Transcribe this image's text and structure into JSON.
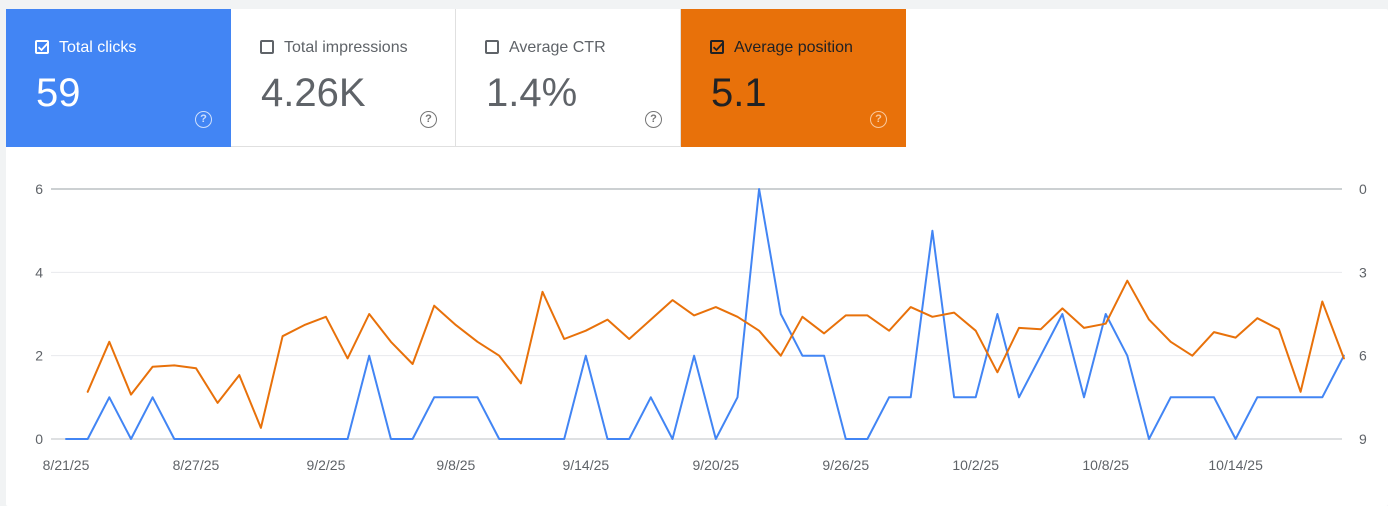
{
  "metrics": [
    {
      "label": "Total clicks",
      "value": "59",
      "checked": true,
      "color": "#4285f4"
    },
    {
      "label": "Total impressions",
      "value": "4.26K",
      "checked": false,
      "color": "#5e35b1"
    },
    {
      "label": "Average CTR",
      "value": "1.4%",
      "checked": false,
      "color": "#00897b"
    },
    {
      "label": "Average position",
      "value": "5.1",
      "checked": true,
      "color": "#e8710a"
    }
  ],
  "help_glyph": "?",
  "chart_data": {
    "type": "line",
    "x_dates": [
      "8/21/25",
      "8/22/25",
      "8/23/25",
      "8/24/25",
      "8/25/25",
      "8/26/25",
      "8/27/25",
      "8/28/25",
      "8/29/25",
      "8/30/25",
      "8/31/25",
      "9/1/25",
      "9/2/25",
      "9/3/25",
      "9/4/25",
      "9/5/25",
      "9/6/25",
      "9/7/25",
      "9/8/25",
      "9/9/25",
      "9/10/25",
      "9/11/25",
      "9/12/25",
      "9/13/25",
      "9/14/25",
      "9/15/25",
      "9/16/25",
      "9/17/25",
      "9/18/25",
      "9/19/25",
      "9/20/25",
      "9/21/25",
      "9/22/25",
      "9/23/25",
      "9/24/25",
      "9/25/25",
      "9/26/25",
      "9/27/25",
      "9/28/25",
      "9/29/25",
      "9/30/25",
      "10/1/25",
      "10/2/25",
      "10/3/25",
      "10/4/25",
      "10/5/25",
      "10/6/25",
      "10/7/25",
      "10/8/25",
      "10/9/25",
      "10/10/25",
      "10/11/25",
      "10/12/25",
      "10/13/25",
      "10/14/25",
      "10/15/25",
      "10/16/25",
      "10/17/25",
      "10/18/25",
      "10/19/25",
      "10/20/25",
      "10/21/25",
      "10/22/25"
    ],
    "x_tick_labels": [
      "8/21/25",
      "8/27/25",
      "9/2/25",
      "9/8/25",
      "9/14/25",
      "9/20/25",
      "9/26/25",
      "10/2/25",
      "10/8/25",
      "10/14/25"
    ],
    "y_left": {
      "ticks": [
        "0",
        "2",
        "4",
        "6"
      ],
      "range": [
        0,
        6
      ]
    },
    "y_right": {
      "ticks": [
        "0",
        "3",
        "6",
        "9"
      ],
      "range": [
        0,
        9
      ],
      "reversed": true
    },
    "grid": true,
    "series": [
      {
        "name": "Total clicks",
        "axis": "left",
        "color": "#4285f4",
        "start_index": 0,
        "values": [
          0,
          0,
          1,
          0,
          1,
          0,
          0,
          0,
          0,
          0,
          0,
          0,
          0,
          0,
          2,
          0,
          0,
          1,
          1,
          1,
          0,
          0,
          0,
          0,
          2,
          0,
          0,
          1,
          0,
          2,
          0,
          1,
          6,
          3,
          2,
          2,
          0,
          0,
          1,
          1,
          5,
          1,
          1,
          3,
          1,
          2,
          3,
          1,
          3,
          2,
          0,
          1,
          1,
          1,
          0,
          1,
          1,
          1,
          1,
          2
        ]
      },
      {
        "name": "Average position",
        "axis": "right",
        "color": "#e8710a",
        "start_index": 1,
        "values": [
          7.3,
          5.5,
          7.4,
          6.4,
          6.35,
          6.45,
          7.7,
          6.7,
          8.6,
          5.3,
          4.9,
          4.6,
          6.1,
          4.5,
          5.5,
          6.3,
          4.2,
          4.9,
          5.5,
          6.0,
          7.0,
          3.7,
          5.4,
          5.1,
          4.7,
          5.4,
          4.7,
          4.0,
          4.55,
          4.25,
          4.6,
          5.1,
          6.0,
          4.6,
          5.2,
          4.55,
          4.55,
          5.1,
          4.25,
          4.6,
          4.45,
          5.1,
          6.6,
          5.0,
          5.05,
          4.3,
          5.0,
          4.85,
          3.3,
          4.7,
          5.5,
          6.0,
          5.15,
          5.35,
          4.65,
          5.05,
          7.3,
          4.05,
          6.1
        ]
      }
    ]
  }
}
